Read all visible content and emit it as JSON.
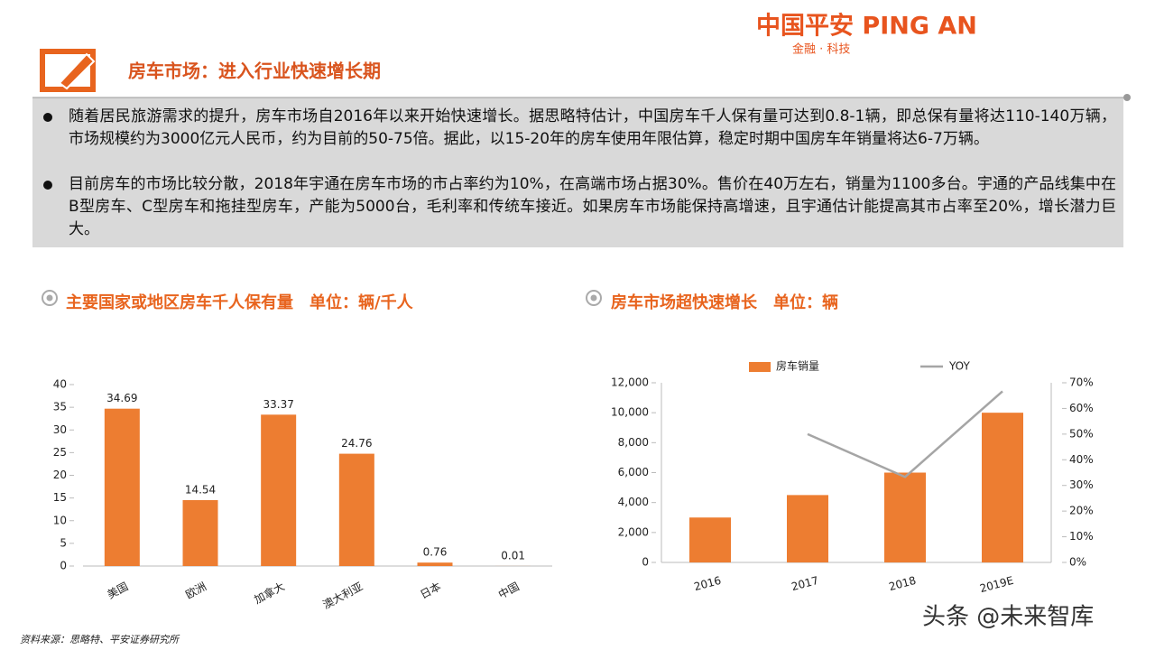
{
  "header": {
    "logo": "中国平安 PING AN",
    "logo_sub": "金融 · 科技",
    "title": "房车市场：进入行业快速增长期"
  },
  "bullets": [
    "随着居民旅游需求的提升，房车市场自2016年以来开始快速增长。据思略特估计，中国房车千人保有量可达到0.8-1辆，即总保有量将达110-140万辆，市场规模约为3000亿元人民币，约为目前的50-75倍。据此，以15-20年的房车使用年限估算，稳定时期中国房车年销量将达6-7万辆。",
    "目前房车的市场比较分散，2018年宇通在房车市场的市占率约为10%，在高端市场占据30%。售价在40万左右，销量为1100多台。宇通的产品线集中在B型房车、C型房车和拖挂型房车，产能为5000台，毛利率和传统车接近。如果房车市场能保持高增速，且宇通估计能提高其市占率至20%，增长潜力巨大。"
  ],
  "chart_data": [
    {
      "type": "bar",
      "title": "主要国家或地区房车千人保有量　单位：辆/千人",
      "categories": [
        "美国",
        "欧洲",
        "加拿大",
        "澳大利亚",
        "日本",
        "中国"
      ],
      "values": [
        34.69,
        14.54,
        33.37,
        24.76,
        0.76,
        0.01
      ],
      "color": "#ED7D31",
      "ylim": [
        0,
        40
      ],
      "yticks": [
        0,
        5,
        10,
        15,
        20,
        25,
        30,
        35,
        40
      ]
    },
    {
      "type": "combo",
      "title": "房车市场超快速增长　单位：辆",
      "categories": [
        "2016",
        "2017",
        "2018",
        "2019E"
      ],
      "series": [
        {
          "name": "房车销量",
          "type": "bar",
          "color": "#ED7D31",
          "values": [
            3000,
            4500,
            6000,
            10000
          ]
        },
        {
          "name": "YOY",
          "type": "line",
          "axis": "y2",
          "color": "#A5A5A5",
          "values": [
            null,
            50,
            33.3,
            66.7
          ]
        }
      ],
      "ylim": [
        0,
        12000
      ],
      "yticks": [
        0,
        {
          "value": 2000,
          "label": "2,000"
        },
        {
          "value": 4000,
          "label": "4,000"
        },
        {
          "value": 6000,
          "label": "6,000"
        },
        {
          "value": 8000,
          "label": "8,000"
        },
        {
          "value": 10000,
          "label": "10,000"
        },
        {
          "value": 12000,
          "label": "12,000"
        }
      ],
      "y2lim": [
        0,
        70
      ],
      "y2ticks": [
        {
          "value": 0,
          "label": "0%"
        },
        {
          "value": 10,
          "label": "10%"
        },
        {
          "value": 20,
          "label": "20%"
        },
        {
          "value": 30,
          "label": "30%"
        },
        {
          "value": 40,
          "label": "40%"
        },
        {
          "value": 50,
          "label": "50%"
        },
        {
          "value": 60,
          "label": "60%"
        },
        {
          "value": 70,
          "label": "70%"
        }
      ]
    }
  ],
  "source": "资料来源：思略特、平安证券研究所",
  "watermark": "头条 @未来智库"
}
